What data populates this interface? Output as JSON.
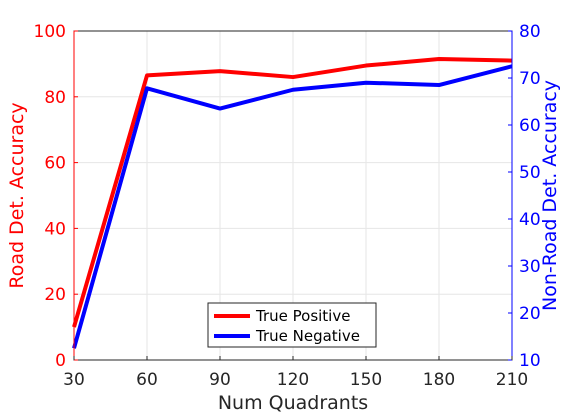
{
  "chart_data": {
    "type": "line",
    "x": [
      30,
      60,
      90,
      120,
      150,
      180,
      210
    ],
    "xlabel": "Num Quadrants",
    "xticks": [
      30,
      60,
      90,
      120,
      150,
      180,
      210
    ],
    "xlim": [
      30,
      210
    ],
    "axes": {
      "left": {
        "label": "Road Det. Accuracy",
        "ylim": [
          0,
          100
        ],
        "ticks": [
          0,
          20,
          40,
          60,
          80,
          100
        ],
        "color": "#ff0000"
      },
      "right": {
        "label": "Non-Road Det. Accuracy",
        "ylim": [
          10,
          80
        ],
        "ticks": [
          10,
          20,
          30,
          40,
          50,
          60,
          70,
          80
        ],
        "color": "#0000ff"
      }
    },
    "series": [
      {
        "name": "True Positive",
        "axis": "left",
        "color": "#ff0000",
        "values": [
          10,
          86.5,
          87.8,
          86.0,
          89.5,
          91.5,
          91.0
        ]
      },
      {
        "name": "True Negative",
        "axis": "right",
        "color": "#0000ff",
        "values": [
          12.5,
          67.8,
          63.5,
          67.5,
          69.0,
          68.5,
          72.5
        ]
      }
    ],
    "grid": true,
    "legend_position": "bottom-center"
  }
}
